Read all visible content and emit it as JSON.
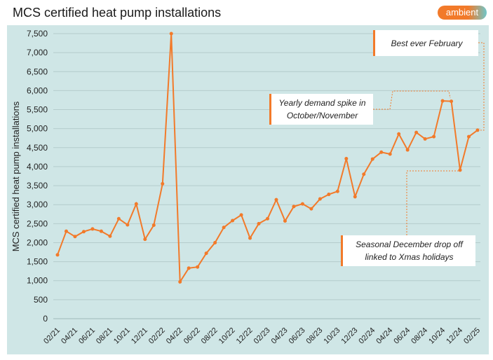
{
  "header": {
    "title": "MCS certified heat pump installations",
    "logo_text": "ambient"
  },
  "chart_data": {
    "type": "line",
    "title": "MCS certified heat pump installations",
    "ylabel": "MCS certified heat pump installations",
    "xlabel": "",
    "ylim": [
      0,
      7500
    ],
    "yticks": [
      0,
      500,
      1000,
      1500,
      2000,
      2500,
      3000,
      3500,
      4000,
      4500,
      5000,
      5500,
      6000,
      6500,
      7000,
      7500
    ],
    "ytick_labels": [
      "0",
      "500",
      "1,000",
      "1,500",
      "2,000",
      "2,500",
      "3,000",
      "3,500",
      "4,000",
      "4,500",
      "5,000",
      "5,500",
      "6,000",
      "6,500",
      "7,000",
      "7,500"
    ],
    "x_tick_labels": [
      "02/21",
      "04/21",
      "06/21",
      "08/21",
      "10/21",
      "12/21",
      "02/22",
      "04/22",
      "06/22",
      "08/22",
      "10/22",
      "12/22",
      "02/23",
      "04/23",
      "06/23",
      "08/23",
      "10/23",
      "12/23",
      "02/24",
      "04/24",
      "06/24",
      "08/24",
      "10/24",
      "12/24",
      "02/25"
    ],
    "grid": true,
    "color": "#f27a2a",
    "series": [
      {
        "name": "",
        "values": [
          1680,
          2300,
          2160,
          2290,
          2360,
          2300,
          2170,
          2630,
          2470,
          3020,
          2090,
          2460,
          3550,
          7500,
          970,
          1330,
          1360,
          1720,
          2000,
          2400,
          2580,
          2730,
          2120,
          2500,
          2630,
          3130,
          2570,
          2950,
          3020,
          2890,
          3150,
          3270,
          3350,
          4210,
          3210,
          3800,
          4200,
          4380,
          4330,
          4860,
          4440,
          4900,
          4730,
          4790,
          5730,
          5720,
          3910,
          4790,
          4960
        ]
      }
    ],
    "annotations": [
      {
        "text": "Best ever February"
      },
      {
        "text": "Yearly demand spike in October/November"
      },
      {
        "text": "Seasonal December drop off linked to Xmas holidays"
      }
    ]
  }
}
